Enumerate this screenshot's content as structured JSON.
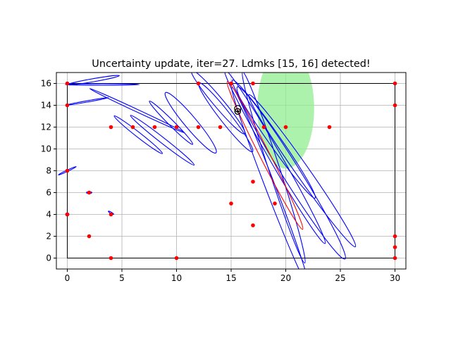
{
  "chart_data": {
    "type": "scatter",
    "title": "Uncertainty update, iter=27. Ldmks [15, 16] detected!",
    "xlabel": "",
    "ylabel": "",
    "xlim": [
      -1,
      31
    ],
    "ylim": [
      -1,
      17
    ],
    "xticks": [
      0,
      5,
      10,
      15,
      20,
      25,
      30
    ],
    "yticks": [
      0,
      2,
      4,
      6,
      8,
      10,
      12,
      14,
      16
    ],
    "grid": true,
    "colors": {
      "landmarks": "#ff0000",
      "landmark_ellipse": "#0000ff",
      "robot_ellipse": "#ff0000",
      "sensor_region": "#90ee90",
      "boundary": "#000000",
      "robot": "#000000",
      "grid": "#b0b0b0"
    },
    "boundary": [
      [
        0,
        0
      ],
      [
        30,
        0
      ],
      [
        30,
        16
      ],
      [
        0,
        16
      ]
    ],
    "landmarks": [
      [
        0,
        16
      ],
      [
        0,
        14
      ],
      [
        0,
        8
      ],
      [
        0,
        4
      ],
      [
        2,
        6
      ],
      [
        2,
        2
      ],
      [
        4,
        12
      ],
      [
        4,
        4
      ],
      [
        4,
        0
      ],
      [
        6,
        12
      ],
      [
        8,
        12
      ],
      [
        10,
        12
      ],
      [
        10,
        0
      ],
      [
        12,
        16
      ],
      [
        12,
        12
      ],
      [
        14,
        12
      ],
      [
        15,
        16
      ],
      [
        17,
        16
      ],
      [
        15,
        5
      ],
      [
        17,
        7
      ],
      [
        17,
        3
      ],
      [
        18,
        12
      ],
      [
        19,
        5
      ],
      [
        20,
        12
      ],
      [
        24,
        12
      ],
      [
        30,
        16
      ],
      [
        30,
        14
      ],
      [
        30,
        2
      ],
      [
        30,
        1
      ],
      [
        30,
        0
      ]
    ],
    "sensor_region": {
      "cx": 20,
      "cy": 13.7,
      "rx": 2.6,
      "ry": 5.5,
      "angle": 0
    },
    "robot": {
      "x": 15.6,
      "y": 13.5
    },
    "robot_ellipse": {
      "cx": 18.1,
      "cy": 9.4,
      "rx": 7.6,
      "ry": 0.45,
      "angle": -63
    },
    "landmark_ellipses": [
      {
        "cx": 3.2,
        "cy": 15.9,
        "rx": 3.4,
        "ry": 0.07,
        "angle": 0
      },
      {
        "cx": 2.4,
        "cy": 16.3,
        "rx": 2.4,
        "ry": 0.14,
        "angle": 10
      },
      {
        "cx": 1.8,
        "cy": 14.35,
        "rx": 2.0,
        "ry": 0.06,
        "angle": 10
      },
      {
        "cx": 0.0,
        "cy": 8.0,
        "rx": 0.9,
        "ry": 0.06,
        "angle": 25
      },
      {
        "cx": 2.0,
        "cy": 6.0,
        "rx": 0.25,
        "ry": 0.08,
        "angle": 0
      },
      {
        "cx": 4.0,
        "cy": 4.15,
        "rx": 0.28,
        "ry": 0.06,
        "angle": -30
      },
      {
        "cx": 0.0,
        "cy": 4.0,
        "rx": 0.15,
        "ry": 0.15,
        "angle": 0
      },
      {
        "cx": 6.5,
        "cy": 11.3,
        "rx": 2.8,
        "ry": 0.22,
        "angle": -38
      },
      {
        "cx": 6.4,
        "cy": 13.5,
        "rx": 4.8,
        "ry": 0.12,
        "angle": -25
      },
      {
        "cx": 8.7,
        "cy": 10.8,
        "rx": 3.7,
        "ry": 0.25,
        "angle": -38
      },
      {
        "cx": 9.5,
        "cy": 12.4,
        "rx": 2.8,
        "ry": 0.25,
        "angle": -45
      },
      {
        "cx": 11.3,
        "cy": 12.4,
        "rx": 3.6,
        "ry": 0.55,
        "angle": -50
      },
      {
        "cx": 13.8,
        "cy": 14.3,
        "rx": 3.8,
        "ry": 0.45,
        "angle": -50
      },
      {
        "cx": 14.5,
        "cy": 12.9,
        "rx": 4.0,
        "ry": 0.5,
        "angle": -52
      },
      {
        "cx": 19.0,
        "cy": 9.3,
        "rx": 9.2,
        "ry": 0.55,
        "angle": -60
      },
      {
        "cx": 18.9,
        "cy": 10.9,
        "rx": 6.6,
        "ry": 0.55,
        "angle": -55
      },
      {
        "cx": 20.5,
        "cy": 7.8,
        "rx": 9.3,
        "ry": 0.8,
        "angle": -58
      },
      {
        "cx": 18.6,
        "cy": 6.5,
        "rx": 9.8,
        "ry": 0.45,
        "angle": -69
      },
      {
        "cx": 18.9,
        "cy": 8.3,
        "rx": 9.2,
        "ry": 0.5,
        "angle": -72
      },
      {
        "cx": 21.5,
        "cy": 8.0,
        "rx": 8.5,
        "ry": 0.6,
        "angle": -55
      }
    ]
  }
}
